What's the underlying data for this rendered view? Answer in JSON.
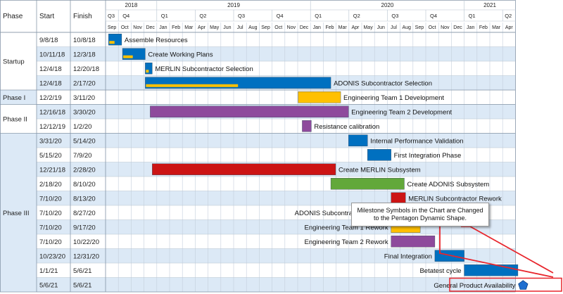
{
  "headers": {
    "phase": "Phase",
    "start": "Start",
    "finish": "Finish"
  },
  "years": [
    "2018",
    "2019",
    "2020",
    "2021"
  ],
  "quarters": [
    "Q3",
    "Q4",
    "Q1",
    "Q2",
    "Q3",
    "Q4",
    "Q1",
    "Q2",
    "Q3",
    "Q4",
    "Q1",
    "Q2"
  ],
  "months": [
    "Sep",
    "Oct",
    "Nov",
    "Dec",
    "Jan",
    "Feb",
    "Mar",
    "Apr",
    "May",
    "Jun",
    "Jul",
    "Aug",
    "Sep",
    "Oct",
    "Nov",
    "Dec",
    "Jan",
    "Feb",
    "Mar",
    "Apr",
    "May",
    "Jun",
    "Jul",
    "Aug",
    "Sep",
    "Oct",
    "Nov",
    "Dec",
    "Jan",
    "Feb",
    "Mar",
    "Apr"
  ],
  "phases": [
    "Startup",
    "Phase I",
    "Phase II",
    "Phase III"
  ],
  "colors": {
    "blue": "#0070c0",
    "yellow": "#ffc000",
    "purple": "#8e4a9c",
    "red": "#cc1414",
    "green": "#62a83a",
    "milestone": "#1f6fd0",
    "row_alt": "#dce9f6",
    "callout_red": "#e8262d"
  },
  "tasks": [
    {
      "start": "9/8/18",
      "finish": "10/8/18",
      "name": "Assemble Resources",
      "color": "blue",
      "progress": 0.45
    },
    {
      "start": "10/11/18",
      "finish": "12/3/18",
      "name": "Create Working Plans",
      "color": "blue",
      "progress": 0.45
    },
    {
      "start": "12/4/18",
      "finish": "12/20/18",
      "name": "MERLIN Subcontractor Selection",
      "color": "blue",
      "progress": 0.5
    },
    {
      "start": "12/4/18",
      "finish": "2/17/20",
      "name": "ADONIS Subcontractor Selection",
      "color": "blue",
      "progress": 0.5
    },
    {
      "start": "12/2/19",
      "finish": "3/11/20",
      "name": "Engineering Team 1 Development",
      "color": "yellow"
    },
    {
      "start": "12/16/18",
      "finish": "3/30/20",
      "name": "Engineering Team 2 Development",
      "color": "purple"
    },
    {
      "start": "12/12/19",
      "finish": "1/2/20",
      "name": "Resistance calibration",
      "color": "purple"
    },
    {
      "start": "3/31/20",
      "finish": "5/14/20",
      "name": "Internal Performance Validation",
      "color": "blue"
    },
    {
      "start": "5/15/20",
      "finish": "7/9/20",
      "name": "First Integration Phase",
      "color": "blue"
    },
    {
      "start": "12/21/18",
      "finish": "2/28/20",
      "name": "Create MERLIN Subsystem",
      "color": "red"
    },
    {
      "start": "2/18/20",
      "finish": "8/10/20",
      "name": "Create ADONIS Subsystem",
      "color": "green"
    },
    {
      "start": "7/10/20",
      "finish": "8/13/20",
      "name": "MERLIN Subcontractor Rework",
      "color": "red"
    },
    {
      "start": "7/10/20",
      "finish": "8/27/20",
      "name": "ADONIS Subcontractor Rework",
      "color": "green"
    },
    {
      "start": "7/10/20",
      "finish": "9/17/20",
      "name": "Engineering Team 1 Rework",
      "color": "yellow"
    },
    {
      "start": "7/10/20",
      "finish": "10/22/20",
      "name": "Engineering Team 2 Rework",
      "color": "purple"
    },
    {
      "start": "10/23/20",
      "finish": "12/31/20",
      "name": "Final Integration",
      "color": "blue"
    },
    {
      "start": "1/1/21",
      "finish": "5/6/21",
      "name": "Betatest cycle",
      "color": "blue"
    },
    {
      "start": "5/6/21",
      "finish": "5/6/21",
      "name": "General Product Availability",
      "milestone": true
    }
  ],
  "callout": {
    "line1": "Milestone Symbols in the Chart are Changed",
    "line2": "to the Pentagon Dynamic Shape."
  }
}
